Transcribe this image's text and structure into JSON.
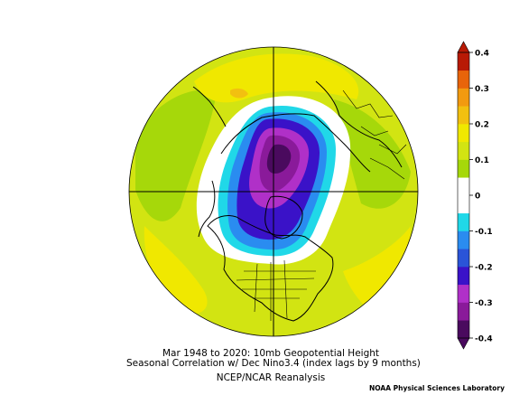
{
  "caption": {
    "line1": "Mar 1948 to 2020: 10mb Geopotential Height",
    "line2": "Seasonal Correlation w/ Dec Nino3.4 (index lags by 9 months)",
    "line3": "NCEP/NCAR Reanalysis"
  },
  "credit": "NOAA Physical Sciences Laboratory",
  "colorbar": {
    "labels": [
      "0.4",
      "0.3",
      "0.2",
      "0.1",
      "0",
      "-0.1",
      "-0.2",
      "-0.3",
      "-0.4"
    ],
    "bins": [
      {
        "color": "#4a0a5e"
      },
      {
        "color": "#8a1a9a"
      },
      {
        "color": "#b030c8"
      },
      {
        "color": "#3a12c8"
      },
      {
        "color": "#2a54d8"
      },
      {
        "color": "#2a8cf0"
      },
      {
        "color": "#20d8e8"
      },
      {
        "color": "#ffffff"
      },
      {
        "color": "#ffffff"
      },
      {
        "color": "#a6d80a"
      },
      {
        "color": "#d2e412"
      },
      {
        "color": "#f0e800"
      },
      {
        "color": "#f2c010"
      },
      {
        "color": "#f29a10"
      },
      {
        "color": "#e8640a"
      },
      {
        "color": "#b81a06"
      }
    ]
  },
  "map": {
    "projection": "north-polar-stereographic",
    "field_colors": {
      "background": "#d2e412",
      "weak_positive": "#a6d80a",
      "moderate_positive": "#f0e800",
      "zero": "#ffffff",
      "neg_1": "#20d8e8",
      "neg_2": "#2a8cf0",
      "neg_3": "#3a12c8",
      "neg_4": "#b030c8",
      "neg_5": "#8a1a9a",
      "neg_6": "#4a0a5e"
    },
    "coastline_color": "#000000"
  }
}
